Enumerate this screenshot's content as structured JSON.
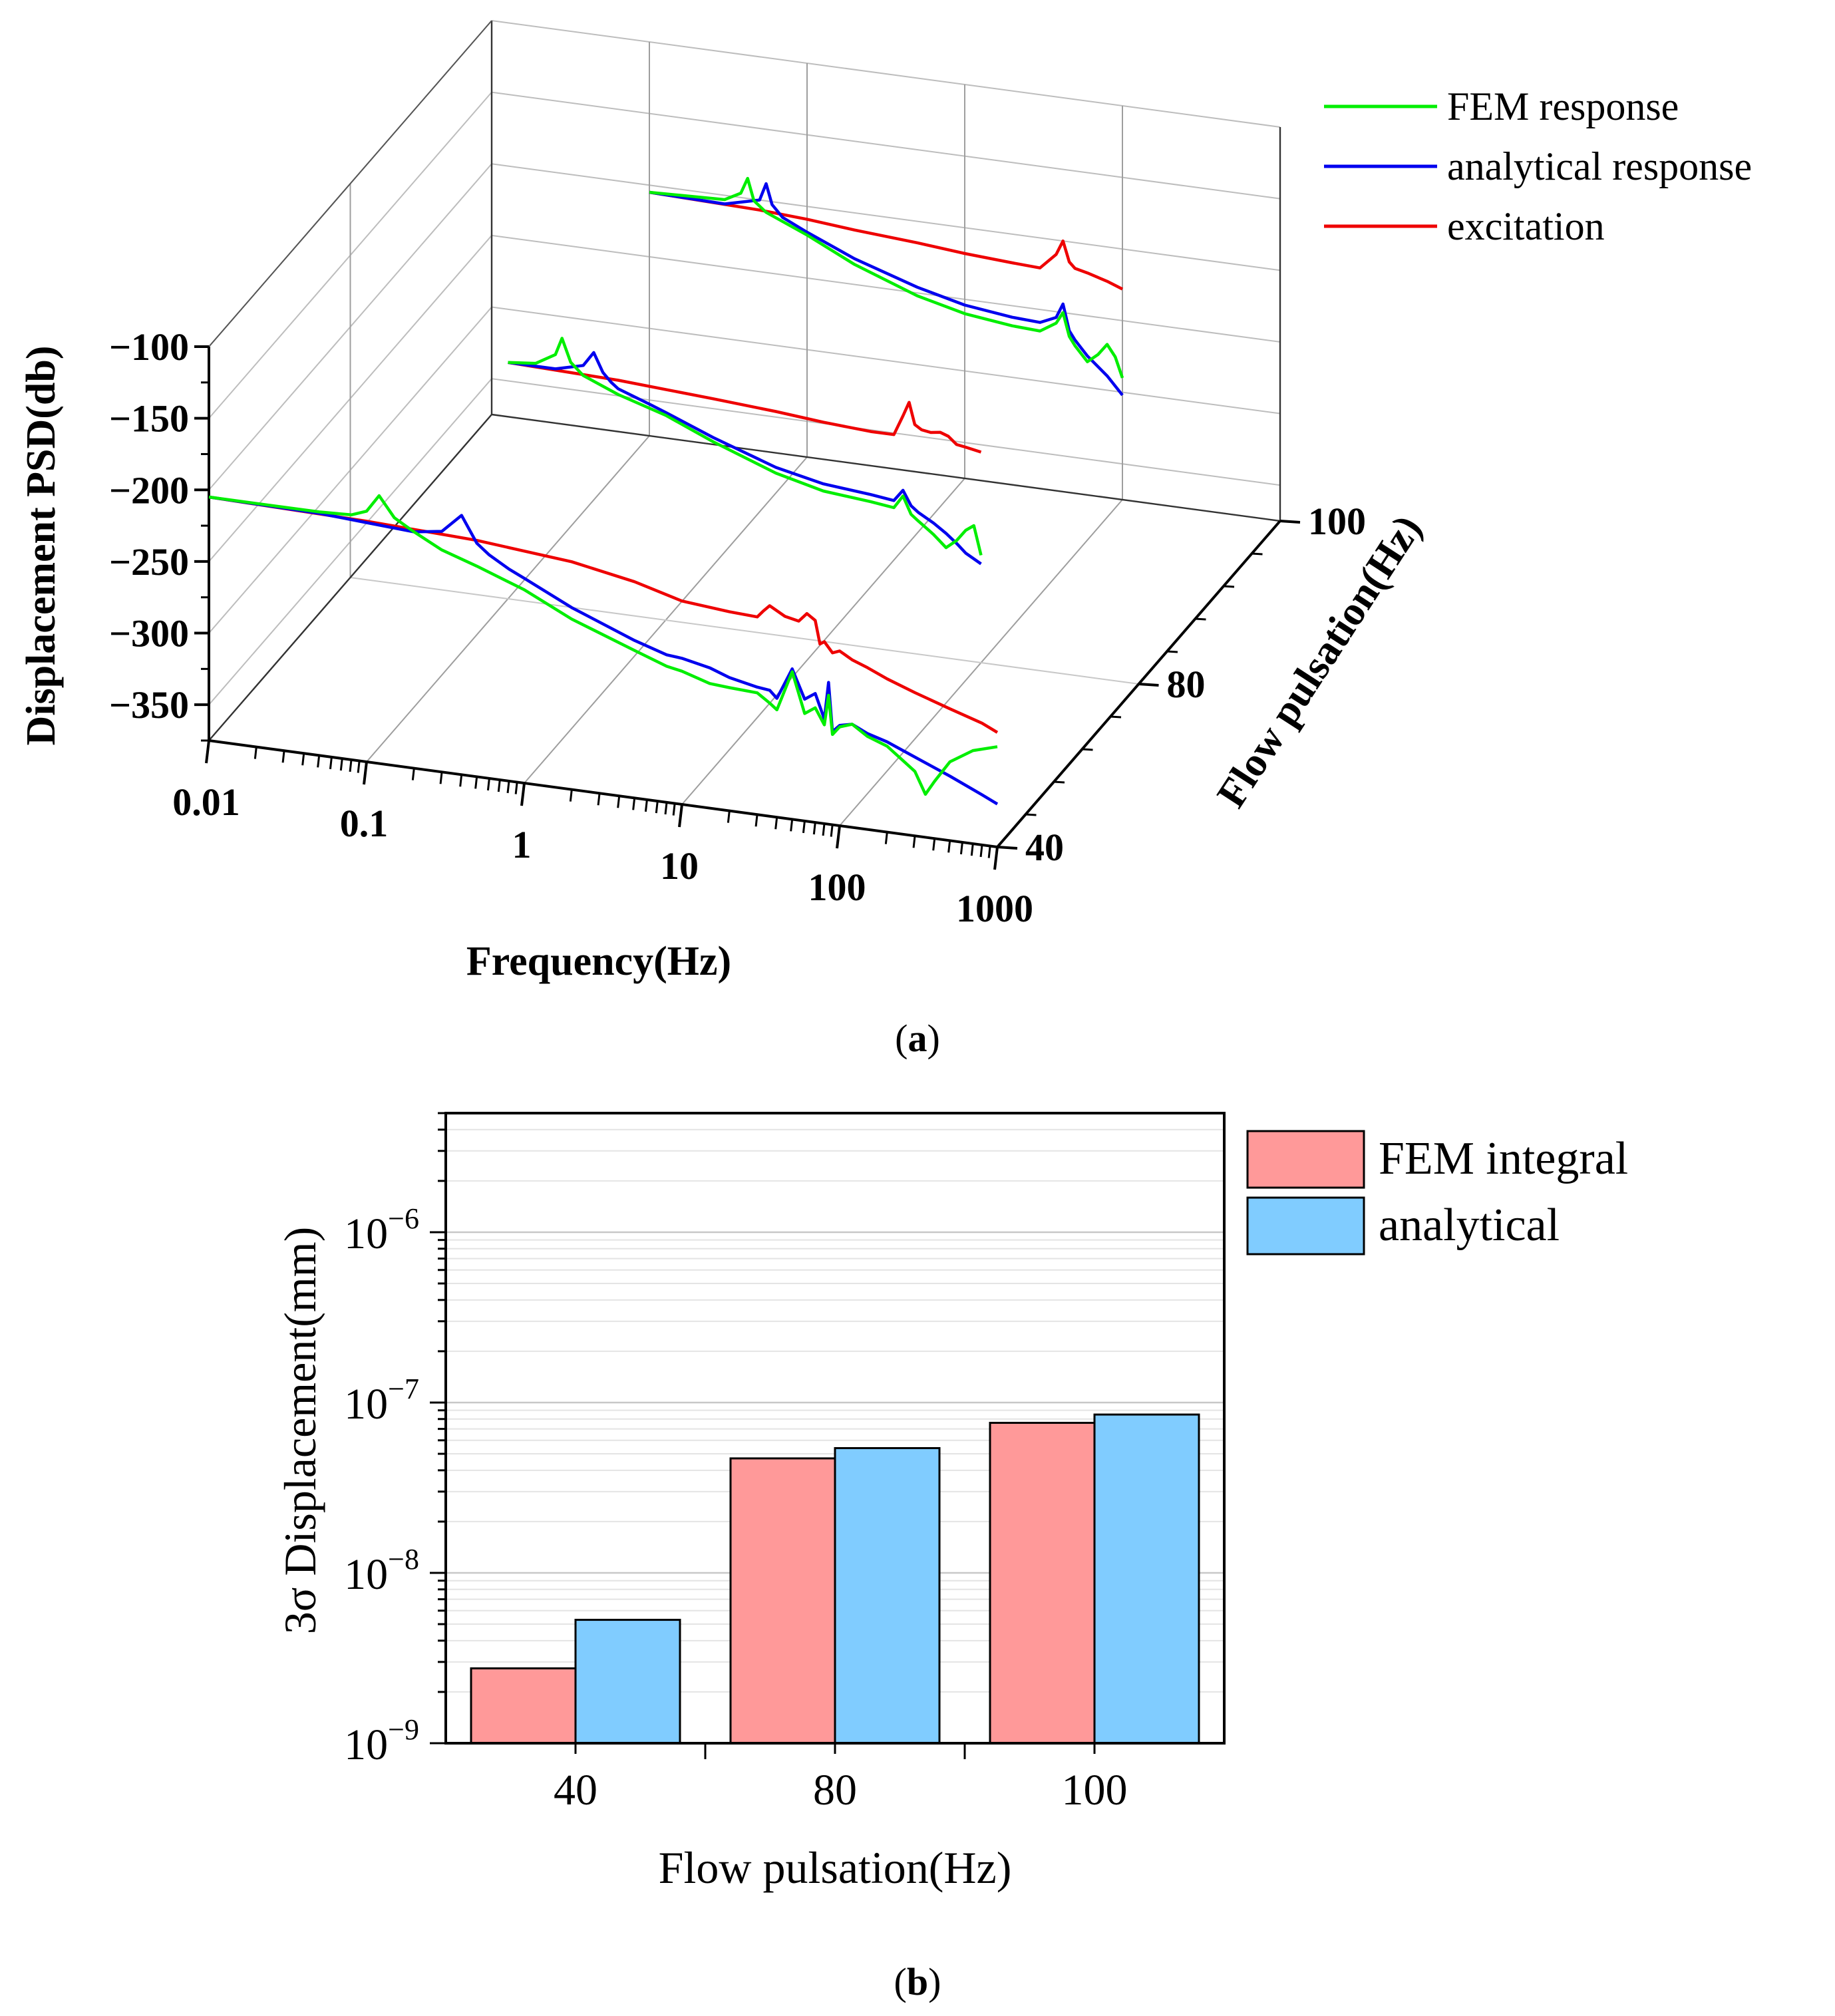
{
  "panel_a": {
    "caption_open": "(",
    "caption_letter": "a",
    "caption_close": ")"
  },
  "panel_b": {
    "caption_open": "(",
    "caption_letter": "b",
    "caption_close": ")"
  },
  "chart_data": [
    {
      "type": "line",
      "subtype": "3d-waterfall",
      "title": "",
      "xlabel": "Frequency(Hz)",
      "ylabel": "Flow pulsation(Hz)",
      "zlabel": "Displacement PSD(db)",
      "x_scale": "log",
      "xlim": [
        0.01,
        1000
      ],
      "zlim": [
        -375,
        -100
      ],
      "x_ticks": [
        "0.01",
        "0.1",
        "1",
        "10",
        "100",
        "1000"
      ],
      "y_ticks": [
        "40",
        "80",
        "100"
      ],
      "z_ticks": [
        "-100",
        "-150",
        "-200",
        "-250",
        "-300",
        "-350"
      ],
      "legend": [
        "FEM response",
        "analytical response",
        "excitation"
      ],
      "legend_position": "top-right",
      "colors": {
        "FEM response": "#00ee00",
        "analytical response": "#0000ee",
        "excitation": "#ee0000"
      },
      "slices": [
        {
          "flow_pulsation": 40,
          "series": [
            {
              "name": "excitation",
              "x": [
                0.01,
                0.1,
                0.5,
                2,
                5,
                10,
                20,
                30,
                33,
                36,
                45,
                55,
                62,
                70,
                75,
                80,
                90,
                100,
                120,
                150,
                200,
                300,
                500,
                800,
                1000
              ],
              "z": [
                -205,
                -207,
                -210,
                -216,
                -224,
                -233,
                -236,
                -237,
                -232,
                -228,
                -234,
                -236,
                -230,
                -234,
                -250,
                -248,
                -255,
                -253,
                -258,
                -262,
                -268,
                -275,
                -283,
                -290,
                -295
              ]
            },
            {
              "name": "analytical response",
              "x": [
                0.01,
                0.05,
                0.1,
                0.2,
                0.3,
                0.4,
                0.5,
                0.6,
                0.8,
                1,
                2,
                5,
                8,
                10,
                15,
                20,
                30,
                36,
                40,
                50,
                60,
                70,
                80,
                85,
                90,
                100,
                120,
                150,
                200,
                300,
                500,
                800,
                1000
              ],
              "z": [
                -205,
                -206,
                -208,
                -210,
                -207,
                -194,
                -212,
                -219,
                -227,
                -232,
                -248,
                -265,
                -272,
                -273,
                -277,
                -282,
                -286,
                -287,
                -292,
                -270,
                -290,
                -285,
                -302,
                -276,
                -310,
                -305,
                -303,
                -308,
                -312,
                -320,
                -330,
                -340,
                -345
              ]
            },
            {
              "name": "FEM response",
              "x": [
                0.01,
                0.02,
                0.05,
                0.08,
                0.1,
                0.12,
                0.15,
                0.2,
                0.3,
                0.5,
                1,
                2,
                5,
                8,
                10,
                15,
                20,
                30,
                36,
                40,
                50,
                60,
                70,
                80,
                85,
                90,
                100,
                120,
                150,
                200,
                300,
                350,
                400,
                500,
                700,
                1000
              ],
              "z": [
                -205,
                -205,
                -205,
                -204,
                -200,
                -188,
                -202,
                -210,
                -220,
                -228,
                -240,
                -256,
                -272,
                -280,
                -282,
                -288,
                -289,
                -290,
                -296,
                -300,
                -272,
                -300,
                -295,
                -306,
                -285,
                -312,
                -306,
                -303,
                -310,
                -315,
                -330,
                -345,
                -335,
                -320,
                -310,
                -305
              ]
            }
          ]
        },
        {
          "flow_pulsation": 80,
          "series": [
            {
              "name": "excitation",
              "x": [
                0.1,
                0.5,
                1,
                2,
                5,
                10,
                20,
                28,
                32,
                35,
                38,
                42,
                48,
                55,
                62,
                70,
                80,
                100
              ],
              "z": [
                -210,
                -212,
                -214,
                -216,
                -219,
                -222,
                -224,
                -224,
                -210,
                -200,
                -215,
                -218,
                -219,
                -218,
                -220,
                -225,
                -226,
                -228
              ]
            },
            {
              "name": "analytical response",
              "x": [
                0.1,
                0.2,
                0.3,
                0.35,
                0.4,
                0.45,
                0.5,
                0.8,
                1,
                2,
                5,
                10,
                20,
                28,
                32,
                36,
                40,
                50,
                60,
                70,
                80,
                100
              ],
              "z": [
                -210,
                -210,
                -205,
                -195,
                -208,
                -214,
                -218,
                -226,
                -230,
                -243,
                -258,
                -265,
                -268,
                -270,
                -262,
                -272,
                -276,
                -282,
                -288,
                -294,
                -300,
                -306
              ]
            },
            {
              "name": "FEM response",
              "x": [
                0.1,
                0.15,
                0.2,
                0.22,
                0.25,
                0.3,
                0.5,
                1,
                2,
                5,
                10,
                20,
                28,
                32,
                36,
                40,
                50,
                60,
                70,
                80,
                90,
                100
              ],
              "z": [
                -210,
                -208,
                -200,
                -188,
                -204,
                -212,
                -222,
                -232,
                -246,
                -262,
                -270,
                -273,
                -275,
                -266,
                -278,
                -282,
                -290,
                -298,
                -292,
                -284,
                -280,
                -300
              ]
            }
          ]
        },
        {
          "flow_pulsation": 100,
          "series": [
            {
              "name": "excitation",
              "x": [
                0.1,
                0.5,
                1,
                2,
                5,
                10,
                20,
                30,
                38,
                42,
                46,
                50,
                60,
                80,
                100
              ],
              "z": [
                -205,
                -207,
                -209,
                -212,
                -215,
                -218,
                -220,
                -221,
                -210,
                -200,
                -214,
                -218,
                -220,
                -224,
                -228
              ]
            },
            {
              "name": "analytical response",
              "x": [
                0.1,
                0.3,
                0.5,
                0.55,
                0.6,
                0.7,
                1,
                2,
                5,
                10,
                20,
                30,
                38,
                42,
                46,
                50,
                60,
                80,
                100
              ],
              "z": [
                -205,
                -206,
                -200,
                -188,
                -202,
                -210,
                -218,
                -232,
                -246,
                -254,
                -258,
                -259,
                -254,
                -244,
                -262,
                -268,
                -278,
                -290,
                -302
              ]
            },
            {
              "name": "FEM response",
              "x": [
                0.1,
                0.3,
                0.38,
                0.42,
                0.46,
                0.55,
                1,
                2,
                5,
                10,
                20,
                30,
                38,
                42,
                46,
                50,
                60,
                70,
                80,
                90,
                100
              ],
              "z": [
                -205,
                -203,
                -197,
                -186,
                -201,
                -208,
                -220,
                -236,
                -252,
                -260,
                -264,
                -265,
                -258,
                -250,
                -266,
                -272,
                -282,
                -276,
                -268,
                -276,
                -290
              ]
            }
          ]
        }
      ]
    },
    {
      "type": "bar",
      "title": "",
      "xlabel": "Flow pulsation(Hz)",
      "ylabel": "3σ Displacement(mm)",
      "y_scale": "log",
      "ylim": [
        1e-09,
        5e-06
      ],
      "y_ticks": [
        {
          "base": "10",
          "exp": "−9"
        },
        {
          "base": "10",
          "exp": "−8"
        },
        {
          "base": "10",
          "exp": "−7"
        },
        {
          "base": "10",
          "exp": "−6"
        }
      ],
      "categories": [
        "40",
        "80",
        "100"
      ],
      "series": [
        {
          "name": "FEM integral",
          "values": [
            2.75e-09,
            4.7e-08,
            7.6e-08
          ],
          "color": "#ff9999"
        },
        {
          "name": "analytical",
          "values": [
            5.3e-09,
            5.4e-08,
            8.5e-08
          ],
          "color": "#80ccff"
        }
      ],
      "legend_position": "top-right",
      "grid": true
    }
  ]
}
